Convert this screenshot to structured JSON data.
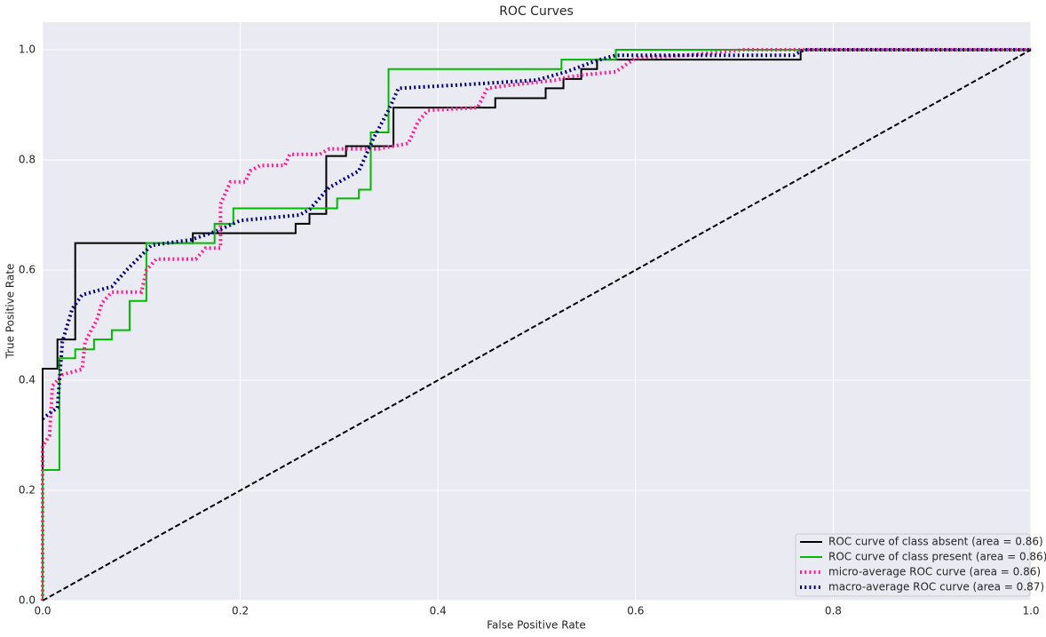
{
  "chart_data": {
    "type": "line",
    "title": "ROC Curves",
    "xlabel": "False Positive Rate",
    "ylabel": "True Positive Rate",
    "xlim": [
      0,
      1
    ],
    "ylim": [
      0,
      1.05
    ],
    "xticks": [
      {
        "value": 0,
        "label": "0.0"
      },
      0.2,
      0.4,
      0.6,
      0.8,
      {
        "value": 1,
        "label": "1.0"
      }
    ],
    "yticks": [
      {
        "value": 0,
        "label": "0.0"
      },
      0.2,
      0.4,
      0.6,
      0.8,
      {
        "value": 1,
        "label": "1.0"
      }
    ],
    "grid": true,
    "legend": "lower right",
    "series": [
      {
        "name": "ROC curve of class absent (area = 0.86)",
        "color": "#000000",
        "style": "solid",
        "linewidth": 2,
        "x": [
          0,
          0,
          0.015,
          0.015,
          0.033,
          0.033,
          0.152,
          0.152,
          0.256,
          0.256,
          0.27,
          0.27,
          0.287,
          0.287,
          0.307,
          0.307,
          0.355,
          0.355,
          0.458,
          0.458,
          0.509,
          0.509,
          0.527,
          0.527,
          0.545,
          0.545,
          0.561,
          0.561,
          0.767,
          0.767,
          1
        ],
        "values": [
          0,
          0.421,
          0.421,
          0.474,
          0.474,
          0.649,
          0.649,
          0.667,
          0.667,
          0.684,
          0.684,
          0.702,
          0.702,
          0.807,
          0.807,
          0.825,
          0.825,
          0.895,
          0.895,
          0.912,
          0.912,
          0.93,
          0.93,
          0.947,
          0.947,
          0.965,
          0.965,
          0.982,
          0.982,
          1,
          1
        ]
      },
      {
        "name": "ROC curve of class present (area = 0.86)",
        "color": "#00bb00",
        "style": "solid",
        "linewidth": 2,
        "x": [
          0,
          0,
          0.017,
          0.017,
          0.033,
          0.033,
          0.052,
          0.052,
          0.07,
          0.07,
          0.088,
          0.088,
          0.105,
          0.105,
          0.174,
          0.174,
          0.193,
          0.193,
          0.298,
          0.298,
          0.32,
          0.32,
          0.332,
          0.332,
          0.35,
          0.35,
          0.525,
          0.525,
          0.58,
          0.58,
          1
        ],
        "values": [
          0,
          0.237,
          0.237,
          0.44,
          0.44,
          0.456,
          0.456,
          0.474,
          0.474,
          0.491,
          0.491,
          0.544,
          0.544,
          0.649,
          0.649,
          0.684,
          0.684,
          0.712,
          0.712,
          0.73,
          0.73,
          0.746,
          0.746,
          0.85,
          0.85,
          0.965,
          0.965,
          0.982,
          0.982,
          1,
          1
        ]
      },
      {
        "name": "micro-average ROC curve (area = 0.86)",
        "color": "#ff1f8f",
        "style": "dotted",
        "linewidth": 4,
        "x": [
          0,
          0,
          0.007,
          0.01,
          0.02,
          0.04,
          0.043,
          0.055,
          0.06,
          0.07,
          0.1,
          0.105,
          0.115,
          0.155,
          0.165,
          0.18,
          0.18,
          0.19,
          0.205,
          0.21,
          0.22,
          0.245,
          0.25,
          0.28,
          0.29,
          0.34,
          0.37,
          0.38,
          0.39,
          0.44,
          0.45,
          0.47,
          0.52,
          0.53,
          0.55,
          0.58,
          0.6,
          0.65,
          0.71,
          1
        ],
        "values": [
          0,
          0.28,
          0.3,
          0.39,
          0.41,
          0.42,
          0.47,
          0.51,
          0.54,
          0.56,
          0.56,
          0.6,
          0.62,
          0.62,
          0.64,
          0.64,
          0.72,
          0.76,
          0.76,
          0.78,
          0.79,
          0.79,
          0.81,
          0.81,
          0.82,
          0.82,
          0.83,
          0.87,
          0.89,
          0.895,
          0.93,
          0.935,
          0.945,
          0.95,
          0.955,
          0.96,
          0.985,
          0.99,
          1,
          1
        ]
      },
      {
        "name": "macro-average ROC curve (area = 0.87)",
        "color": "#000080",
        "style": "dotted",
        "linewidth": 4,
        "x": [
          0,
          0.007,
          0.015,
          0.02,
          0.03,
          0.04,
          0.07,
          0.085,
          0.11,
          0.15,
          0.175,
          0.2,
          0.26,
          0.27,
          0.29,
          0.32,
          0.335,
          0.35,
          0.36,
          0.43,
          0.5,
          0.53,
          0.56,
          0.58,
          0.65,
          0.76,
          0.77,
          1
        ],
        "values": [
          0.33,
          0.34,
          0.35,
          0.47,
          0.53,
          0.555,
          0.57,
          0.6,
          0.645,
          0.655,
          0.67,
          0.69,
          0.7,
          0.71,
          0.75,
          0.78,
          0.84,
          0.89,
          0.93,
          0.937,
          0.945,
          0.96,
          0.98,
          0.99,
          0.99,
          0.99,
          1,
          1
        ]
      },
      {
        "color": "#000000",
        "style": "dashed",
        "linewidth": 2,
        "x": [
          0,
          1
        ],
        "values": [
          0,
          1
        ]
      }
    ]
  }
}
